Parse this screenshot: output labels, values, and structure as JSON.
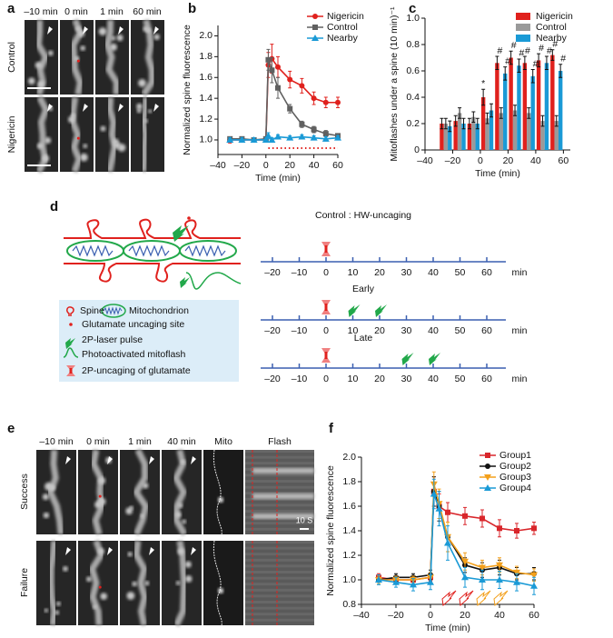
{
  "panel_labels": [
    "a",
    "b",
    "c",
    "d",
    "e",
    "f"
  ],
  "panel_a": {
    "times": [
      "–10 min",
      "0 min",
      "1 min",
      "60 min"
    ],
    "rows": [
      "Control",
      "Nigericin"
    ]
  },
  "chart_data": [
    {
      "type": "line",
      "xlabel": "Time (min)",
      "ylabel": "Normalized spine fluorescence",
      "x": [
        -30,
        -20,
        -10,
        0,
        2,
        5,
        10,
        20,
        30,
        40,
        50,
        60
      ],
      "series": [
        {
          "name": "Nigericin",
          "color": "#e0211d",
          "marker": "circle",
          "values": [
            1.0,
            1.0,
            1.0,
            1.0,
            1.72,
            1.78,
            1.7,
            1.58,
            1.52,
            1.4,
            1.36,
            1.36
          ],
          "errors": [
            0.03,
            0.02,
            0.02,
            0.02,
            0.12,
            0.14,
            0.1,
            0.08,
            0.07,
            0.06,
            0.05,
            0.05
          ]
        },
        {
          "name": "Control",
          "color": "#606060",
          "marker": "square",
          "values": [
            1.01,
            1.01,
            1.0,
            1.01,
            1.77,
            1.67,
            1.5,
            1.3,
            1.15,
            1.1,
            1.06,
            1.04
          ],
          "errors": [
            0.02,
            0.02,
            0.02,
            0.02,
            0.1,
            0.12,
            0.1,
            0.04,
            0.03,
            0.03,
            0.03,
            0.02
          ]
        },
        {
          "name": "Nearby",
          "color": "#1a9ad6",
          "marker": "triangle",
          "values": [
            1.0,
            1.0,
            1.0,
            1.0,
            1.04,
            1.0,
            1.03,
            1.02,
            1.03,
            1.02,
            1.01,
            1.02
          ],
          "errors": [
            0.02,
            0.02,
            0.02,
            0.02,
            0.03,
            0.02,
            0.02,
            0.02,
            0.02,
            0.02,
            0.02,
            0.02
          ]
        }
      ],
      "xlim": [
        -40,
        60
      ],
      "ylim": [
        0.86,
        2.1
      ],
      "xticks": [
        {
          "value": -40,
          "label": "–40"
        },
        {
          "value": -20,
          "label": "–20"
        },
        0,
        20,
        40,
        60
      ],
      "yticks": [
        {
          "value": 1,
          "label": "1.0"
        },
        1.2,
        1.4,
        1.6,
        1.8,
        {
          "value": 2,
          "label": "2.0"
        }
      ],
      "legend": "upper right"
    },
    {
      "type": "bar",
      "xlabel": "Time (min)",
      "ylabel": "Mitoflashes under a spine (10 min)⁻¹",
      "x": [
        -25,
        -15,
        -5,
        5,
        15,
        25,
        35,
        45,
        55
      ],
      "series": [
        {
          "name": "Nigericin",
          "color": "#e0211d",
          "values": [
            0.2,
            0.22,
            0.2,
            0.4,
            0.66,
            0.7,
            0.66,
            0.68,
            0.72
          ],
          "errors": [
            0.04,
            0.04,
            0.04,
            0.06,
            0.05,
            0.05,
            0.05,
            0.05,
            0.04
          ]
        },
        {
          "name": "Control",
          "color": "#9a9a9a",
          "values": [
            0.2,
            0.28,
            0.25,
            0.24,
            0.28,
            0.3,
            0.28,
            0.22,
            0.22
          ],
          "errors": [
            0.04,
            0.04,
            0.04,
            0.04,
            0.04,
            0.04,
            0.04,
            0.04,
            0.04
          ]
        },
        {
          "name": "Nearby",
          "color": "#1a9ad6",
          "values": [
            0.18,
            0.2,
            0.2,
            0.3,
            0.58,
            0.64,
            0.56,
            0.66,
            0.6
          ],
          "errors": [
            0.04,
            0.04,
            0.04,
            0.05,
            0.05,
            0.05,
            0.05,
            0.05,
            0.05
          ]
        }
      ],
      "annotations": [
        {
          "x": 5,
          "series": 0,
          "text": "*"
        },
        {
          "x": 15,
          "series": 0,
          "text": "#"
        },
        {
          "x": 15,
          "series": 2,
          "text": "#"
        },
        {
          "x": 25,
          "series": 0,
          "text": "#"
        },
        {
          "x": 25,
          "series": 2,
          "text": "#"
        },
        {
          "x": 35,
          "series": 0,
          "text": "#"
        },
        {
          "x": 35,
          "series": 2,
          "text": "#"
        },
        {
          "x": 45,
          "series": 0,
          "text": "#"
        },
        {
          "x": 45,
          "series": 2,
          "text": "#"
        },
        {
          "x": 55,
          "series": 0,
          "text": "#"
        },
        {
          "x": 55,
          "series": 2,
          "text": "#"
        }
      ],
      "xlim": [
        -40,
        65
      ],
      "ylim": [
        0,
        1
      ],
      "xticks": [
        {
          "value": -40,
          "label": "–40"
        },
        {
          "value": -20,
          "label": "–20"
        },
        0,
        20,
        40,
        60
      ],
      "yticks": [
        0,
        0.2,
        0.4,
        0.6,
        0.8,
        {
          "value": 1,
          "label": "1.0"
        }
      ],
      "legend": "upper right"
    },
    {
      "type": "line",
      "xlabel": "Time (min)",
      "ylabel": "Normalized spine fluorescence",
      "x": [
        -30,
        -20,
        -10,
        0,
        2,
        5,
        10,
        20,
        30,
        40,
        50,
        60
      ],
      "series": [
        {
          "name": "Group1",
          "color": "#d9262b",
          "marker": "square",
          "values": [
            1.02,
            1.0,
            1.0,
            1.02,
            1.72,
            1.6,
            1.55,
            1.52,
            1.5,
            1.42,
            1.4,
            1.42
          ],
          "errors": [
            0.03,
            0.03,
            0.03,
            0.03,
            0.12,
            0.1,
            0.08,
            0.07,
            0.07,
            0.07,
            0.06,
            0.05
          ]
        },
        {
          "name": "Group2",
          "color": "#111111",
          "marker": "circle",
          "values": [
            1.0,
            1.02,
            1.02,
            1.04,
            1.72,
            1.6,
            1.35,
            1.12,
            1.08,
            1.1,
            1.05,
            1.05
          ],
          "errors": [
            0.03,
            0.03,
            0.03,
            0.04,
            0.12,
            0.12,
            0.12,
            0.06,
            0.06,
            0.06,
            0.05,
            0.05
          ]
        },
        {
          "name": "Group3",
          "color": "#f3a01c",
          "marker": "triangle-down",
          "values": [
            1.0,
            1.0,
            1.0,
            1.02,
            1.78,
            1.62,
            1.35,
            1.15,
            1.1,
            1.12,
            1.06,
            1.04
          ],
          "errors": [
            0.03,
            0.03,
            0.03,
            0.04,
            0.1,
            0.12,
            0.12,
            0.07,
            0.06,
            0.06,
            0.05,
            0.05
          ]
        },
        {
          "name": "Group4",
          "color": "#1a9ad6",
          "marker": "triangle",
          "values": [
            1.0,
            0.98,
            0.96,
            0.98,
            1.7,
            1.58,
            1.3,
            1.02,
            1.0,
            1.0,
            0.98,
            0.95
          ],
          "errors": [
            0.04,
            0.04,
            0.05,
            0.06,
            0.12,
            0.14,
            0.14,
            0.08,
            0.08,
            0.07,
            0.07,
            0.07
          ]
        }
      ],
      "xlim": [
        -40,
        60
      ],
      "ylim": [
        0.8,
        2
      ],
      "xticks": [
        {
          "value": -40,
          "label": "–40"
        },
        {
          "value": -20,
          "label": "–20"
        },
        0,
        20,
        40,
        60
      ],
      "yticks": [
        0.8,
        {
          "value": 1,
          "label": "1.0"
        },
        1.2,
        1.4,
        1.6,
        1.8,
        {
          "value": 2,
          "label": "2.0"
        }
      ],
      "legend": "upper right"
    }
  ],
  "panel_d": {
    "legend": [
      "Spine",
      "Mitochondrion",
      "Glutamate uncaging site",
      "2P-laser pulse",
      "Photoactivated mitoflash",
      "2P-uncaging of glutamate"
    ],
    "timelines": [
      {
        "title": "Control : HW-uncaging"
      },
      {
        "title": "Early",
        "pulses": [
          10,
          20
        ]
      },
      {
        "title": "Late",
        "pulses": [
          30,
          40
        ]
      }
    ],
    "ticks": [
      {
        "value": -20,
        "label": "–20"
      },
      {
        "value": -10,
        "label": "–10"
      },
      0,
      10,
      20,
      30,
      40,
      50,
      60
    ],
    "unit": "min",
    "uncaging": 0
  },
  "panel_e": {
    "times": [
      "–10 min",
      "0 min",
      "1 min",
      "40 min"
    ],
    "mito": "Mito",
    "flash": "Flash",
    "rows": [
      "Success",
      "Failure"
    ],
    "scale": "10 S"
  }
}
